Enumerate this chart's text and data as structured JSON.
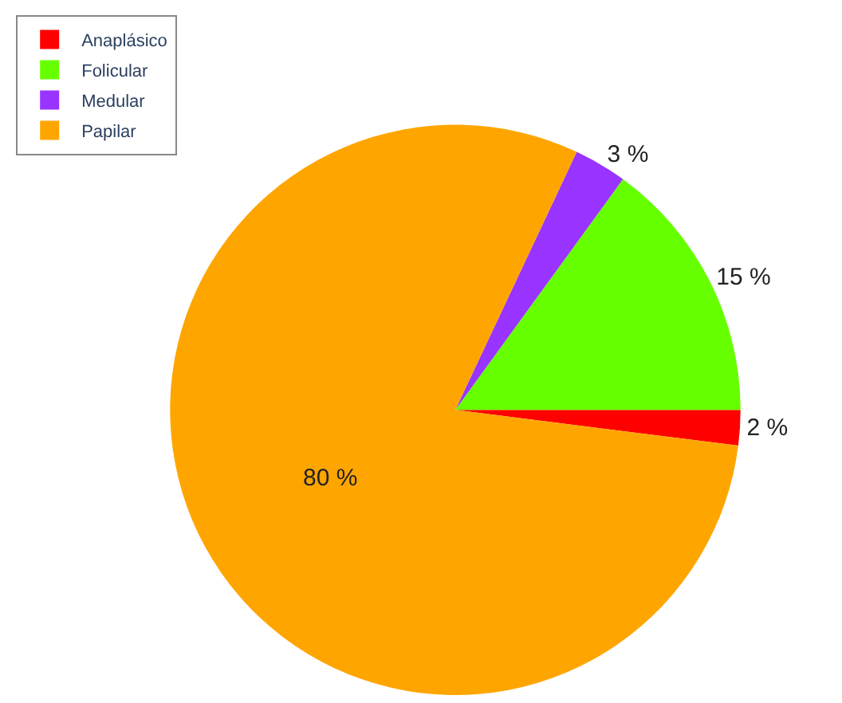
{
  "chart_data": {
    "type": "pie",
    "categories": [
      "Anaplásico",
      "Folicular",
      "Medular",
      "Papilar"
    ],
    "values": [
      2,
      15,
      3,
      80
    ],
    "colors": [
      "#ff0000",
      "#66ff00",
      "#9933ff",
      "#ffa500"
    ],
    "value_labels": [
      "2 %",
      "15 %",
      "3 %",
      "80 %"
    ],
    "legend": "top left"
  }
}
